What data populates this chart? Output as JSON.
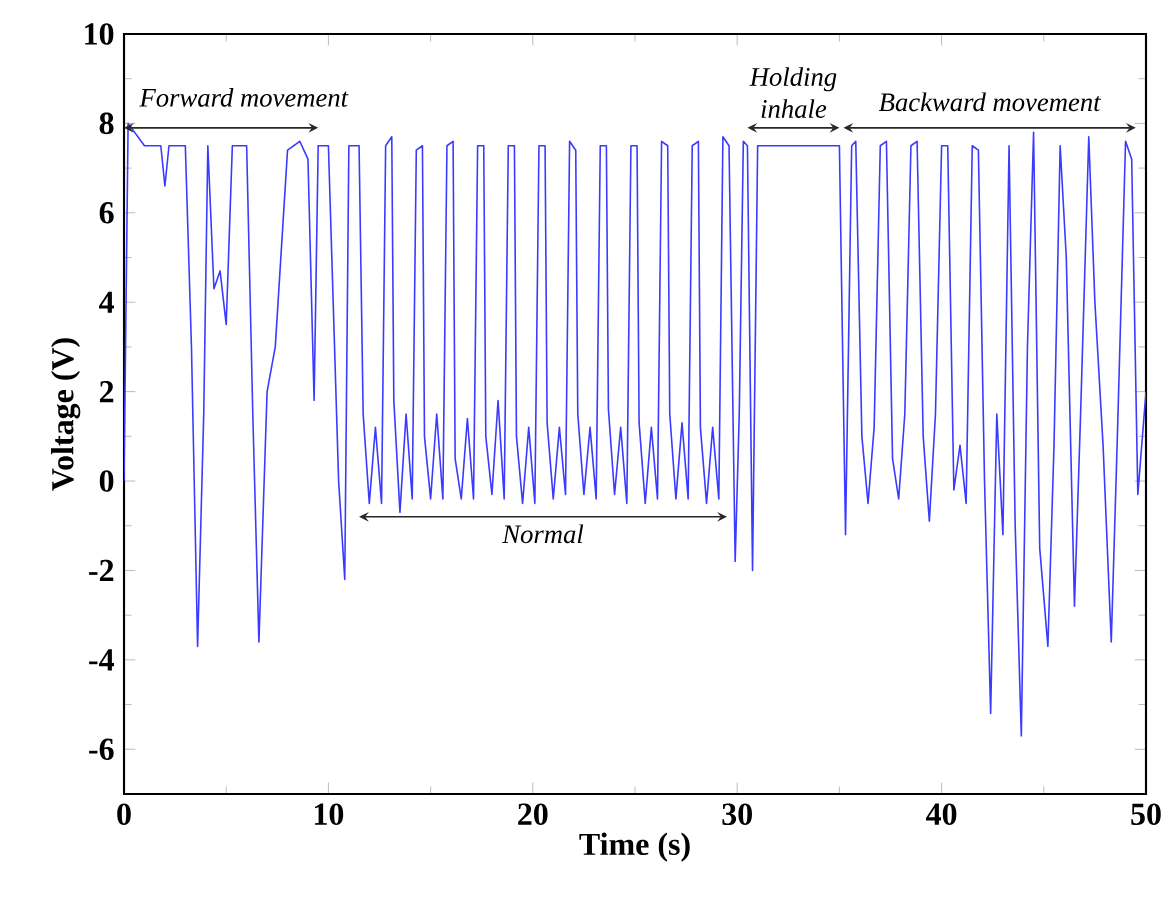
{
  "chart_data": {
    "type": "line",
    "xlabel": "Time (s)",
    "ylabel": "Voltage (V)",
    "xlim": [
      0,
      50
    ],
    "ylim": [
      -7,
      10
    ],
    "xticks": [
      0,
      10,
      20,
      30,
      40,
      50
    ],
    "yticks": [
      -6,
      -4,
      -2,
      0,
      2,
      4,
      6,
      8,
      10
    ],
    "grid": false,
    "marker": "none",
    "line_style": "solid",
    "series": [
      {
        "color": "#3b3bff",
        "x": [
          0,
          0.2,
          1,
          1.8,
          2,
          2.2,
          3,
          3.3,
          3.6,
          3.9,
          4.1,
          4.4,
          4.7,
          5,
          5.3,
          6,
          6.3,
          6.6,
          7,
          7.4,
          8,
          8.6,
          9,
          9.3,
          9.5,
          10,
          10.5,
          10.8,
          11,
          11.5,
          11.7,
          12.0,
          12.3,
          12.6,
          12.8,
          13.1,
          13.2,
          13.5,
          13.8,
          14.1,
          14.3,
          14.6,
          14.7,
          15.0,
          15.3,
          15.6,
          15.8,
          16.1,
          16.2,
          16.5,
          16.8,
          17.1,
          17.3,
          17.6,
          17.7,
          18.0,
          18.3,
          18.6,
          18.8,
          19.1,
          19.2,
          19.5,
          19.8,
          20.1,
          20.3,
          20.6,
          20.7,
          21.0,
          21.3,
          21.6,
          21.8,
          22.1,
          22.2,
          22.5,
          22.8,
          23.1,
          23.3,
          23.6,
          23.7,
          24.0,
          24.3,
          24.6,
          24.8,
          25.1,
          25.2,
          25.5,
          25.8,
          26.1,
          26.3,
          26.6,
          26.7,
          27.0,
          27.3,
          27.6,
          27.8,
          28.1,
          28.2,
          28.5,
          28.8,
          29.1,
          29.3,
          29.6,
          29.9,
          30.1,
          30.3,
          30.5,
          30.75,
          31.0,
          35.0,
          35.3,
          35.6,
          35.8,
          36.1,
          36.4,
          36.7,
          37.0,
          37.3,
          37.6,
          37.9,
          38.2,
          38.5,
          38.8,
          39.1,
          39.4,
          39.7,
          40.0,
          40.3,
          40.6,
          40.9,
          41.2,
          41.5,
          41.8,
          42.1,
          42.4,
          42.7,
          43.0,
          43.3,
          43.6,
          43.9,
          44.2,
          44.5,
          44.8,
          45.2,
          45.5,
          45.8,
          46.1,
          46.5,
          46.8,
          47.2,
          47.5,
          47.9,
          48.3,
          48.6,
          49.0,
          49.3,
          49.6,
          50
        ],
        "values": [
          0,
          8,
          7.5,
          7.5,
          6.6,
          7.5,
          7.5,
          3,
          -3.7,
          1.5,
          7.5,
          4.3,
          4.7,
          3.5,
          7.5,
          7.5,
          1.5,
          -3.6,
          2,
          3,
          7.4,
          7.6,
          7.2,
          1.8,
          7.5,
          7.5,
          0,
          -2.2,
          7.5,
          7.5,
          1.5,
          -0.5,
          1.2,
          -0.5,
          7.5,
          7.7,
          1.8,
          -0.7,
          1.5,
          -0.4,
          7.4,
          7.5,
          1,
          -0.4,
          1.5,
          -0.4,
          7.5,
          7.6,
          0.5,
          -0.4,
          1.4,
          -0.4,
          7.5,
          7.5,
          1,
          -0.3,
          1.8,
          -0.4,
          7.5,
          7.5,
          1,
          -0.5,
          1.2,
          -0.5,
          7.5,
          7.5,
          1.3,
          -0.4,
          1.2,
          -0.3,
          7.6,
          7.4,
          1.5,
          -0.3,
          1.2,
          -0.4,
          7.5,
          7.5,
          1.6,
          -0.3,
          1.2,
          -0.5,
          7.5,
          7.5,
          1.3,
          -0.5,
          1.2,
          -0.4,
          7.6,
          7.5,
          1.5,
          -0.4,
          1.3,
          -0.4,
          7.5,
          7.6,
          1.2,
          -0.5,
          1.2,
          -0.4,
          7.7,
          7.5,
          -1.8,
          1.5,
          7.6,
          7.5,
          -2,
          7.5,
          7.5,
          -1.2,
          7.5,
          7.6,
          1,
          -0.5,
          1.2,
          7.5,
          7.6,
          0.5,
          -0.4,
          1.5,
          7.5,
          7.6,
          1,
          -0.9,
          1.5,
          7.5,
          7.5,
          -0.2,
          0.8,
          -0.5,
          7.5,
          7.4,
          0,
          -5.2,
          1.5,
          -1.2,
          7.5,
          -1,
          -5.7,
          3,
          7.8,
          -1.5,
          -3.7,
          0.8,
          7.5,
          5,
          -2.8,
          1.5,
          7.7,
          4,
          0.8,
          -3.6,
          1,
          7.6,
          7.2,
          -0.3,
          2
        ]
      }
    ],
    "annotations": [
      "Forward movement",
      "Normal",
      "Holding inhale",
      "Backward movement"
    ]
  }
}
